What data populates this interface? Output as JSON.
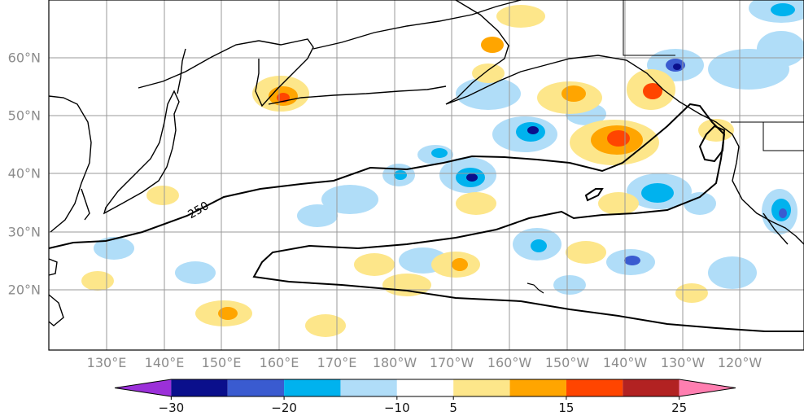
{
  "map": {
    "longitude_labels": [
      "130°E",
      "140°E",
      "150°E",
      "160°E",
      "170°E",
      "180°W",
      "170°W",
      "160°W",
      "150°W",
      "140°W",
      "130°W",
      "120°W"
    ],
    "latitude_labels": [
      "60°N",
      "50°N",
      "40°N",
      "30°N",
      "20°N"
    ],
    "contour_label": "250",
    "contour_color": "#000000",
    "coastline_color": "#000000",
    "gridline_color": "#9a9a9a"
  },
  "colorbar": {
    "tick_labels": [
      "−30",
      "−20",
      "−10",
      "5",
      "15",
      "25"
    ],
    "bins": [
      {
        "color": "#9b30d9"
      },
      {
        "color": "#0a0f8c"
      },
      {
        "color": "#3a5bd0"
      },
      {
        "color": "#00b2ee"
      },
      {
        "color": "#b0ddf8"
      },
      {
        "color": "#ffffff"
      },
      {
        "color": "#fde68a"
      },
      {
        "color": "#ffa500"
      },
      {
        "color": "#ff4500"
      },
      {
        "color": "#b22222"
      },
      {
        "color": "#ff7eb0"
      }
    ]
  }
}
